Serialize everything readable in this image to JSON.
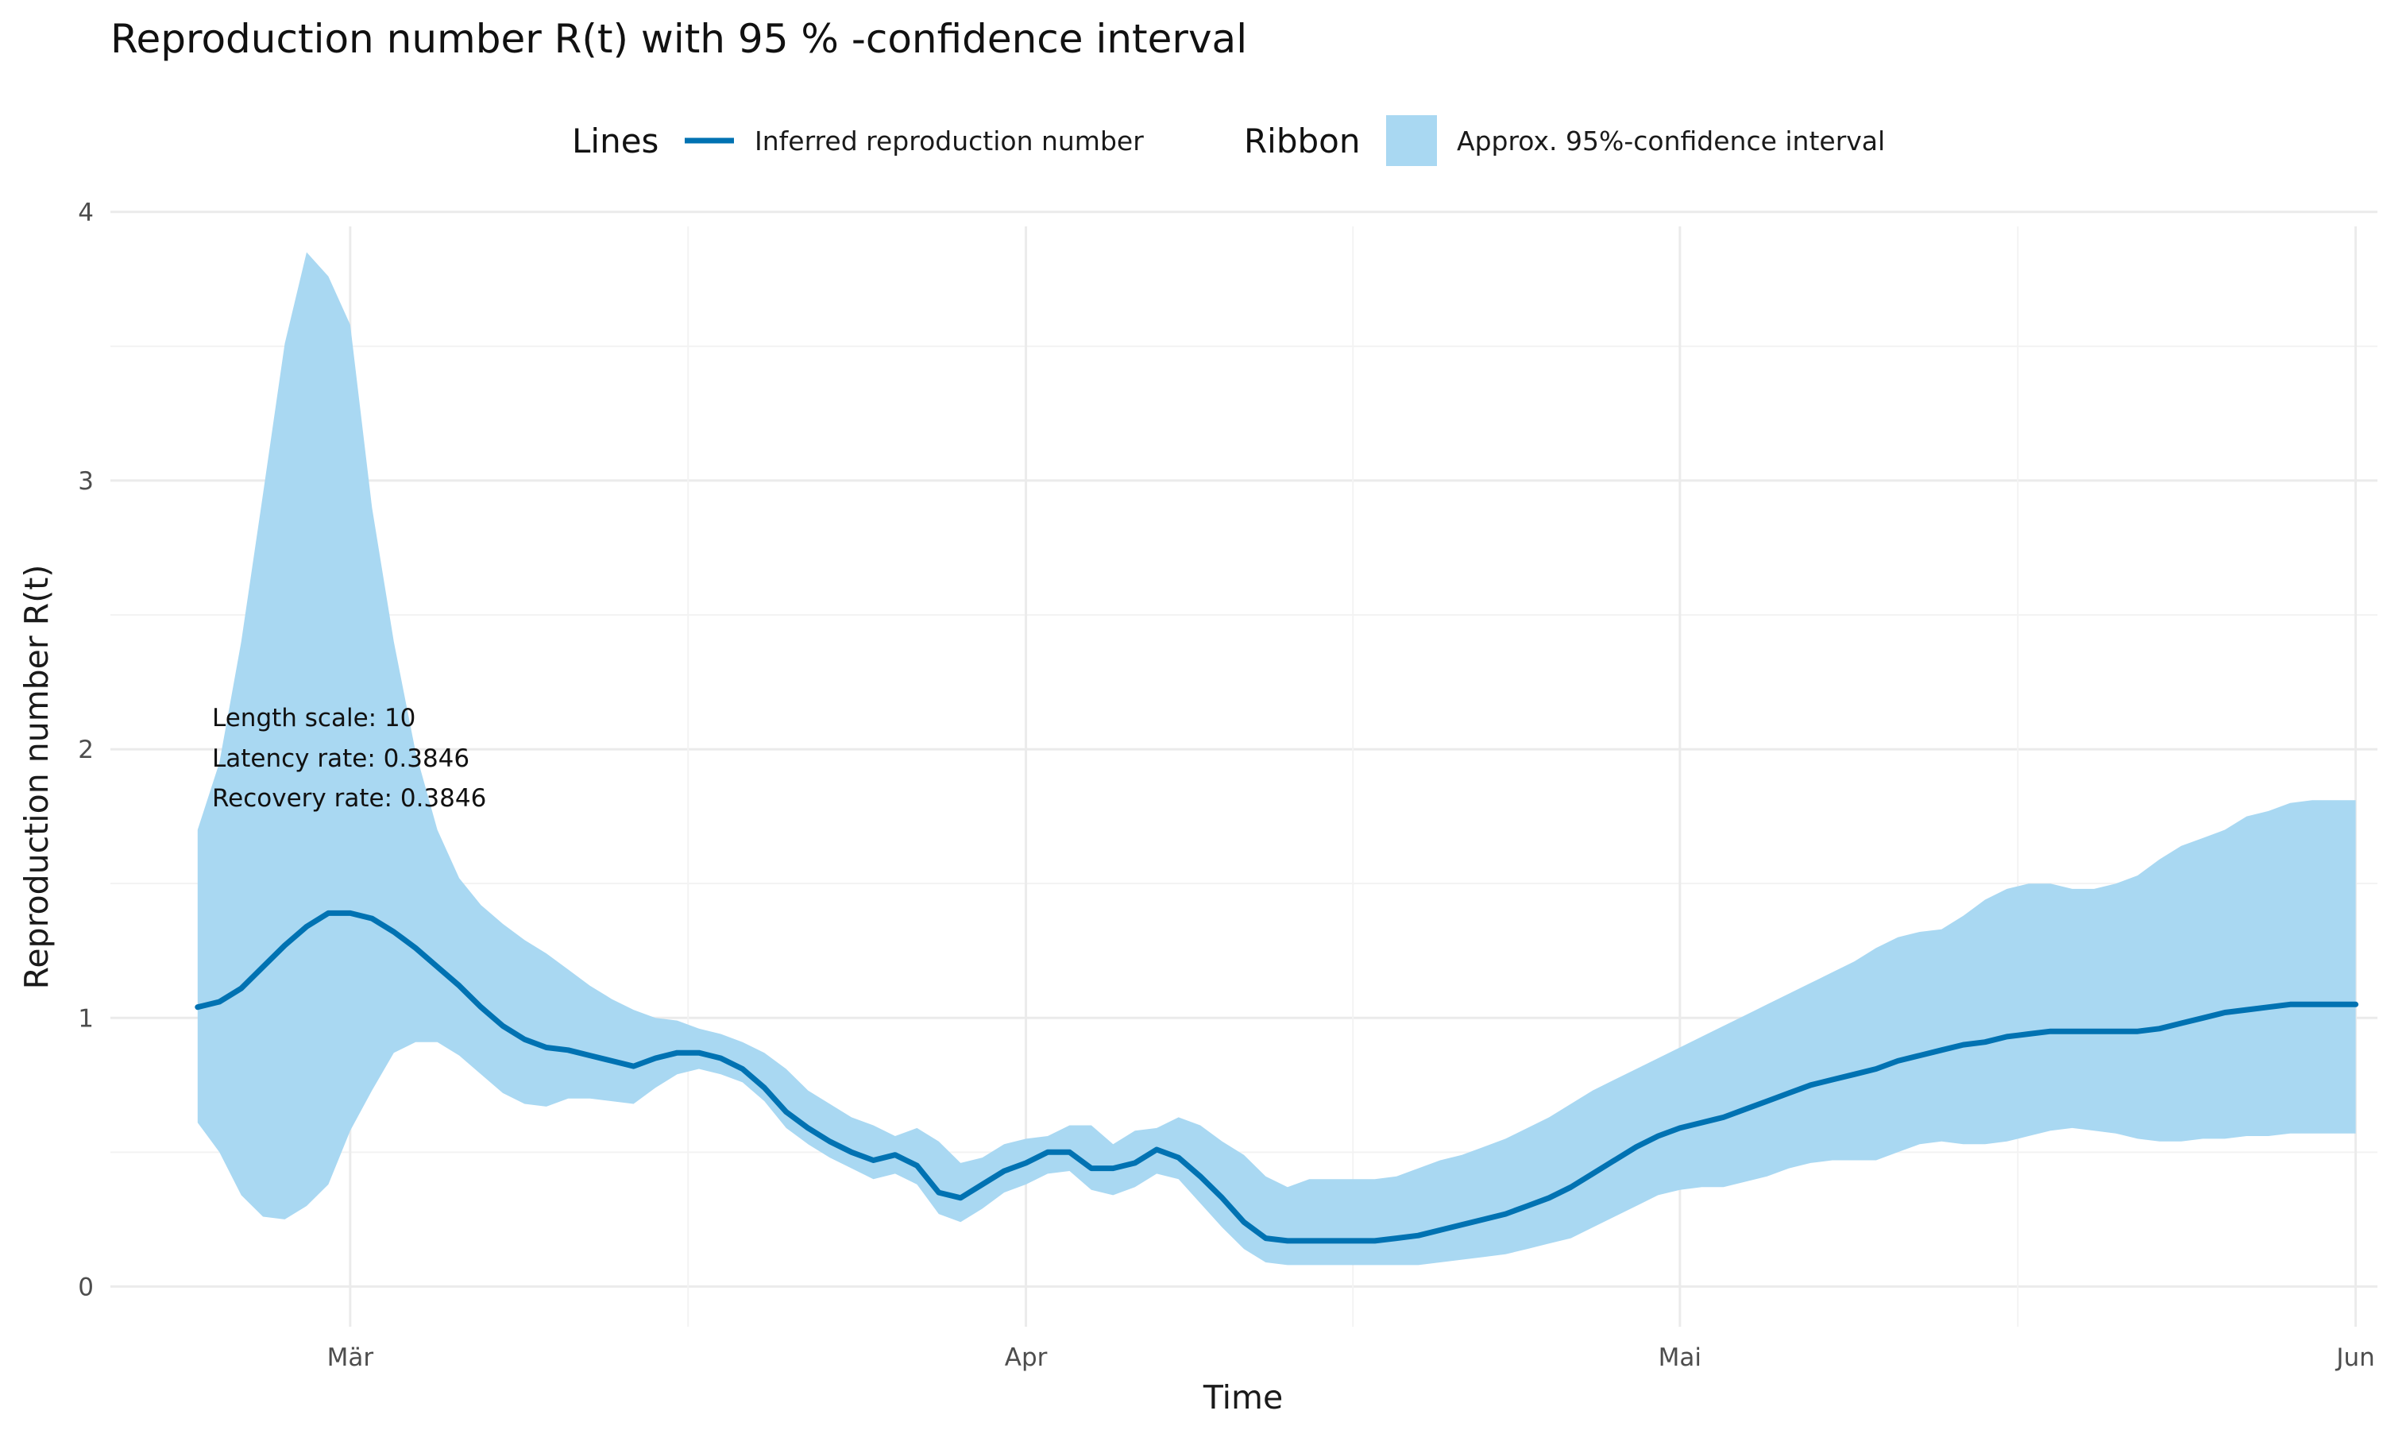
{
  "chart_data": {
    "type": "line",
    "title": "Reproduction number R(t) with 95 % -confidence interval",
    "xlabel": "Time",
    "ylabel": "Reproduction number R(t)",
    "x_start": "2020-02-23",
    "x_end": "2020-06-01",
    "xlim": [
      "2020-02-19",
      "2020-06-02"
    ],
    "ylim": [
      -0.12,
      4.02
    ],
    "y_ticks": [
      "0",
      "1",
      "2",
      "3",
      "4"
    ],
    "x_ticks": [
      {
        "date": "2020-03-01",
        "label": "Mär"
      },
      {
        "date": "2020-04-01",
        "label": "Apr"
      },
      {
        "date": "2020-05-01",
        "label": "Mai"
      },
      {
        "date": "2020-06-01",
        "label": "Jun"
      }
    ],
    "grid": true,
    "legend_position": "top",
    "legend": {
      "lines_title": "Lines",
      "lines_label": "Inferred reproduction number",
      "ribbon_title": "Ribbon",
      "ribbon_label": "Approx.  95%-confidence interval"
    },
    "annotations": [
      "Length scale: 10",
      "Latency rate: 0.3846",
      "Recovery rate: 0.3846"
    ],
    "colors": {
      "line": "#0072B2",
      "ribbon": "#A9D8F2"
    },
    "series": [
      {
        "name": "Inferred reproduction number",
        "values": [
          1.04,
          1.06,
          1.11,
          1.19,
          1.27,
          1.34,
          1.39,
          1.39,
          1.37,
          1.32,
          1.26,
          1.19,
          1.12,
          1.04,
          0.97,
          0.92,
          0.89,
          0.88,
          0.86,
          0.84,
          0.82,
          0.85,
          0.87,
          0.87,
          0.85,
          0.81,
          0.74,
          0.65,
          0.59,
          0.54,
          0.5,
          0.47,
          0.49,
          0.45,
          0.35,
          0.33,
          0.38,
          0.43,
          0.46,
          0.5,
          0.5,
          0.44,
          0.44,
          0.46,
          0.51,
          0.48,
          0.41,
          0.33,
          0.24,
          0.18,
          0.17,
          0.17,
          0.17,
          0.17,
          0.17,
          0.18,
          0.19,
          0.21,
          0.23,
          0.25,
          0.27,
          0.3,
          0.33,
          0.37,
          0.42,
          0.47,
          0.52,
          0.56,
          0.59,
          0.61,
          0.63,
          0.66,
          0.69,
          0.72,
          0.75,
          0.77,
          0.79,
          0.81,
          0.84,
          0.86,
          0.88,
          0.9,
          0.91,
          0.93,
          0.94,
          0.95,
          0.95,
          0.95,
          0.95,
          0.95,
          0.96,
          0.98,
          1.0,
          1.02,
          1.03,
          1.04,
          1.05,
          1.05,
          1.05,
          1.05
        ]
      },
      {
        "name": "Approx.  95%-confidence interval",
        "lower": [
          0.61,
          0.5,
          0.34,
          0.26,
          0.25,
          0.3,
          0.38,
          0.58,
          0.73,
          0.87,
          0.91,
          0.91,
          0.86,
          0.79,
          0.72,
          0.68,
          0.67,
          0.7,
          0.7,
          0.69,
          0.68,
          0.74,
          0.79,
          0.81,
          0.79,
          0.76,
          0.69,
          0.59,
          0.53,
          0.48,
          0.44,
          0.4,
          0.42,
          0.38,
          0.27,
          0.24,
          0.29,
          0.35,
          0.38,
          0.42,
          0.43,
          0.36,
          0.34,
          0.37,
          0.42,
          0.4,
          0.31,
          0.22,
          0.14,
          0.09,
          0.08,
          0.08,
          0.08,
          0.08,
          0.08,
          0.08,
          0.08,
          0.09,
          0.1,
          0.11,
          0.12,
          0.14,
          0.16,
          0.18,
          0.22,
          0.26,
          0.3,
          0.34,
          0.36,
          0.37,
          0.37,
          0.39,
          0.41,
          0.44,
          0.46,
          0.47,
          0.47,
          0.47,
          0.5,
          0.53,
          0.54,
          0.53,
          0.53,
          0.54,
          0.56,
          0.58,
          0.59,
          0.58,
          0.57,
          0.55,
          0.54,
          0.54,
          0.55,
          0.55,
          0.56,
          0.56,
          0.57,
          0.57,
          0.57,
          0.57
        ],
        "upper": [
          1.7,
          1.95,
          2.4,
          2.95,
          3.51,
          3.85,
          3.76,
          3.58,
          2.9,
          2.4,
          1.99,
          1.7,
          1.52,
          1.42,
          1.35,
          1.29,
          1.24,
          1.18,
          1.12,
          1.07,
          1.03,
          1.0,
          0.99,
          0.96,
          0.94,
          0.91,
          0.87,
          0.81,
          0.73,
          0.68,
          0.63,
          0.6,
          0.56,
          0.59,
          0.54,
          0.46,
          0.48,
          0.53,
          0.55,
          0.56,
          0.6,
          0.6,
          0.53,
          0.58,
          0.59,
          0.63,
          0.6,
          0.54,
          0.49,
          0.41,
          0.37,
          0.4,
          0.4,
          0.4,
          0.4,
          0.41,
          0.44,
          0.47,
          0.49,
          0.52,
          0.55,
          0.59,
          0.63,
          0.68,
          0.73,
          0.77,
          0.81,
          0.85,
          0.89,
          0.93,
          0.97,
          1.01,
          1.05,
          1.09,
          1.13,
          1.17,
          1.21,
          1.26,
          1.3,
          1.32,
          1.33,
          1.38,
          1.44,
          1.48,
          1.5,
          1.5,
          1.48,
          1.48,
          1.5,
          1.53,
          1.59,
          1.64,
          1.67,
          1.7,
          1.75,
          1.77,
          1.8,
          1.81,
          1.81,
          1.81
        ]
      }
    ]
  }
}
